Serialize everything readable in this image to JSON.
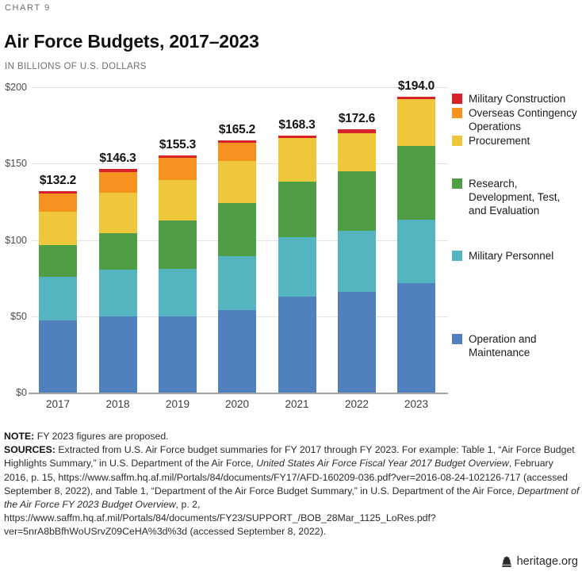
{
  "page": {
    "kicker": "CHART 9",
    "title": "Air Force Budgets, 2017–2023",
    "subtitle": "IN BILLIONS OF U.S. DOLLARS",
    "footer_brand": "heritage.org"
  },
  "colors": {
    "military_construction": "#d7222a",
    "overseas_contingency": "#f6921e",
    "procurement": "#eec73a",
    "rdte": "#4f9d45",
    "military_personnel": "#54b4c0",
    "operation_maintenance": "#5081be",
    "gridline": "#e3e3e3",
    "axis_line": "#a3a3a3"
  },
  "chart_data": {
    "type": "bar",
    "stacked": true,
    "title": "Air Force Budgets, 2017–2023",
    "ylabel": "IN BILLIONS OF U.S. DOLLARS",
    "categories": [
      "2017",
      "2018",
      "2019",
      "2020",
      "2021",
      "2022",
      "2023"
    ],
    "totals": [
      132.2,
      146.3,
      155.3,
      165.2,
      168.3,
      172.6,
      194.0
    ],
    "total_labels": [
      "$132.2",
      "$146.3",
      "$155.3",
      "$165.2",
      "$168.3",
      "$172.6",
      "$194.0"
    ],
    "series": [
      {
        "name": "Operation and Maintenance",
        "color_key": "operation_maintenance",
        "values": [
          47.3,
          49.7,
          50.1,
          54.2,
          63.1,
          66.2,
          71.7
        ]
      },
      {
        "name": "Military Personnel",
        "color_key": "military_personnel",
        "values": [
          28.7,
          30.6,
          31.1,
          34.9,
          38.5,
          39.7,
          41.4
        ]
      },
      {
        "name": "Research, Development, Test, and Evaluation",
        "color_key": "rdte",
        "values": [
          20.4,
          24.2,
          31.6,
          35.3,
          36.6,
          39.2,
          48.2
        ]
      },
      {
        "name": "Procurement",
        "color_key": "procurement",
        "values": [
          22.1,
          26.4,
          26.2,
          27.3,
          28.3,
          24.7,
          30.7
        ]
      },
      {
        "name": "Overseas Contingency Operations",
        "color_key": "overseas_contingency",
        "values": [
          11.8,
          13.7,
          14.7,
          11.7,
          0,
          0,
          0
        ]
      },
      {
        "name": "Military Construction",
        "color_key": "military_construction",
        "values": [
          1.9,
          1.7,
          1.6,
          1.8,
          1.8,
          2.8,
          2.0
        ]
      }
    ],
    "y_axis": {
      "min": 0,
      "max": 200,
      "tick_step": 50,
      "tick_values": [
        0,
        50,
        100,
        150,
        200
      ],
      "tick_labels": [
        "$0",
        "$50",
        "$100",
        "$150",
        "$200"
      ]
    },
    "legend_position": "right",
    "grid": true
  },
  "legend": {
    "items": [
      {
        "label": "Military Construction",
        "color_key": "military_construction"
      },
      {
        "label": "Overseas Contingency Operations",
        "color_key": "overseas_contingency"
      },
      {
        "label": "Procurement",
        "color_key": "procurement"
      },
      {
        "label": "Research, Development, Test, and Evaluation",
        "color_key": "rdte"
      },
      {
        "label": "Military Personnel",
        "color_key": "military_personnel"
      },
      {
        "label": "Operation and Maintenance",
        "color_key": "operation_maintenance"
      }
    ]
  },
  "notes": {
    "note_label": "NOTE:",
    "note_text": "FY 2023 figures are proposed.",
    "sources_label": "SOURCES:",
    "sources_runs": [
      {
        "text": " Extracted from U.S. Air Force budget summaries for FY 2017 through FY 2023. For example: Table 1, “Air Force Budget Highlights Summary,” in U.S. Department of the Air Force, ",
        "style": "normal"
      },
      {
        "text": "United States Air Force Fiscal Year 2017 Budget Overview",
        "style": "italic"
      },
      {
        "text": ", February 2016, p. 15, https://www.saffm.hq.af.mil/Portals/84/documents/FY17/AFD-160209-036.pdf?ver=2016-08-24-102126-717 (accessed September 8, 2022), and Table 1, “Department of the Air Force Budget Summary,” in U.S. Department of the Air Force, ",
        "style": "normal"
      },
      {
        "text": "Department of the Air Force FY 2023 Budget Overview",
        "style": "italic"
      },
      {
        "text": ", p. 2, https://www.saffm.hq.af.mil/Portals/84/documents/FY23/SUPPORT_/BOB_28Mar_1125_LoRes.pdf?ver=5nrA8bBfhWoUSrvZ09CeHA%3d%3d (accessed September 8, 2022).",
        "style": "normal"
      }
    ]
  }
}
